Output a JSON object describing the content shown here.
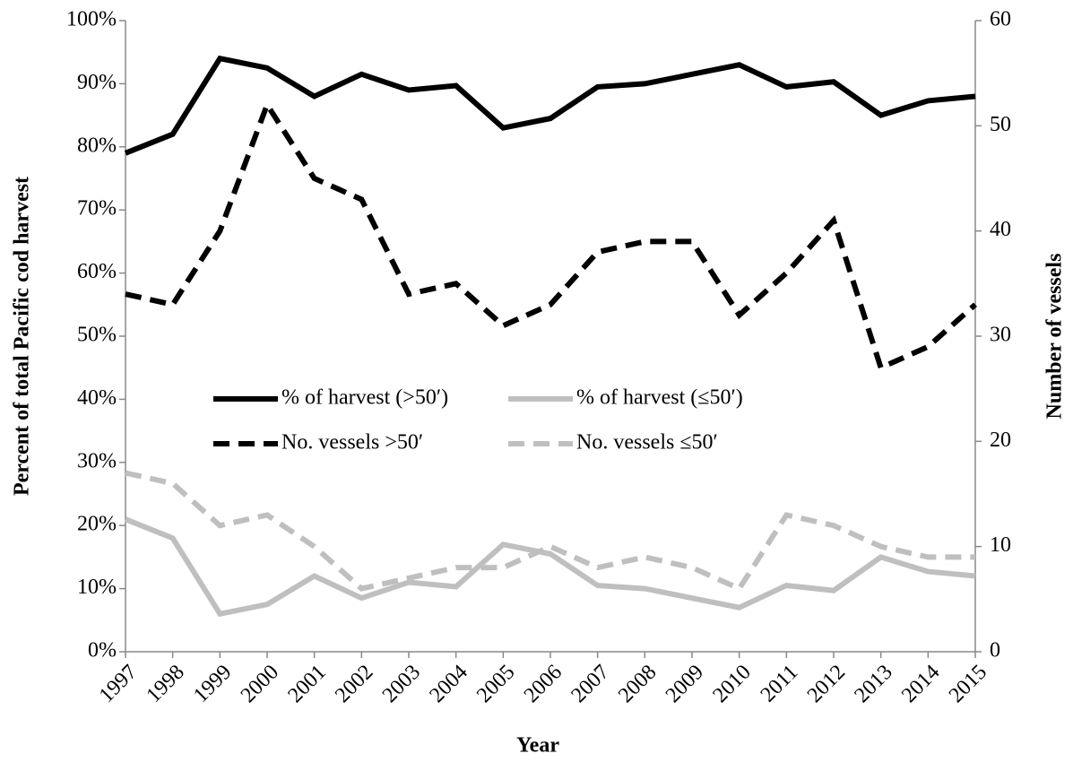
{
  "chart_data": {
    "type": "line",
    "x_label": "Year",
    "y_label": "Percent of total Pacific cod harvest",
    "y2_label": "Number of vessels",
    "x": [
      1997,
      1998,
      1999,
      2000,
      2001,
      2002,
      2003,
      2004,
      2005,
      2006,
      2007,
      2008,
      2009,
      2010,
      2011,
      2012,
      2013,
      2014,
      2015
    ],
    "xlim": [
      1997,
      2015
    ],
    "xticks": [
      1997,
      1998,
      1999,
      2000,
      2001,
      2002,
      2003,
      2004,
      2005,
      2006,
      2007,
      2008,
      2009,
      2010,
      2011,
      2012,
      2013,
      2014,
      2015
    ],
    "ylim": [
      0,
      100
    ],
    "yticks": [
      {
        "value": 0,
        "label": "0%"
      },
      {
        "value": 10,
        "label": "10%"
      },
      {
        "value": 20,
        "label": "20%"
      },
      {
        "value": 30,
        "label": "30%"
      },
      {
        "value": 40,
        "label": "40%"
      },
      {
        "value": 50,
        "label": "50%"
      },
      {
        "value": 60,
        "label": "60%"
      },
      {
        "value": 70,
        "label": "70%"
      },
      {
        "value": 80,
        "label": "80%"
      },
      {
        "value": 90,
        "label": "90%"
      },
      {
        "value": 100,
        "label": "100%"
      }
    ],
    "y2lim": [
      0,
      60
    ],
    "y2ticks": [
      0,
      10,
      20,
      30,
      40,
      50,
      60
    ],
    "grid": false,
    "series": [
      {
        "name": "% of harvest (>50′)",
        "color": "#000000",
        "style": "solid",
        "axis": "y",
        "values": [
          79,
          82,
          94,
          92.5,
          88,
          91.5,
          89,
          89.7,
          83,
          84.5,
          89.5,
          90,
          91.5,
          93,
          89.5,
          90.3,
          85,
          87.3,
          88
        ]
      },
      {
        "name": "% of harvest (≤50′)",
        "color": "#bfbfbf",
        "style": "solid",
        "axis": "y",
        "values": [
          21,
          18,
          6,
          7.5,
          12,
          8.5,
          11,
          10.3,
          17,
          15.5,
          10.5,
          10,
          8.5,
          7,
          10.5,
          9.7,
          15,
          12.7,
          12
        ]
      },
      {
        "name": "No. vessels >50′",
        "color": "#000000",
        "style": "dashed",
        "axis": "y2",
        "values": [
          34,
          33,
          40,
          52,
          45,
          43,
          34,
          35,
          31,
          33,
          38,
          39,
          39,
          32,
          36,
          41,
          27,
          29,
          33
        ]
      },
      {
        "name": "No. vessels ≤50′",
        "color": "#bfbfbf",
        "style": "dashed",
        "axis": "y2",
        "values": [
          17,
          16,
          12,
          13,
          10,
          6,
          7,
          8,
          8,
          10,
          8,
          9,
          8,
          6,
          13,
          12,
          10,
          9,
          9
        ]
      }
    ]
  }
}
